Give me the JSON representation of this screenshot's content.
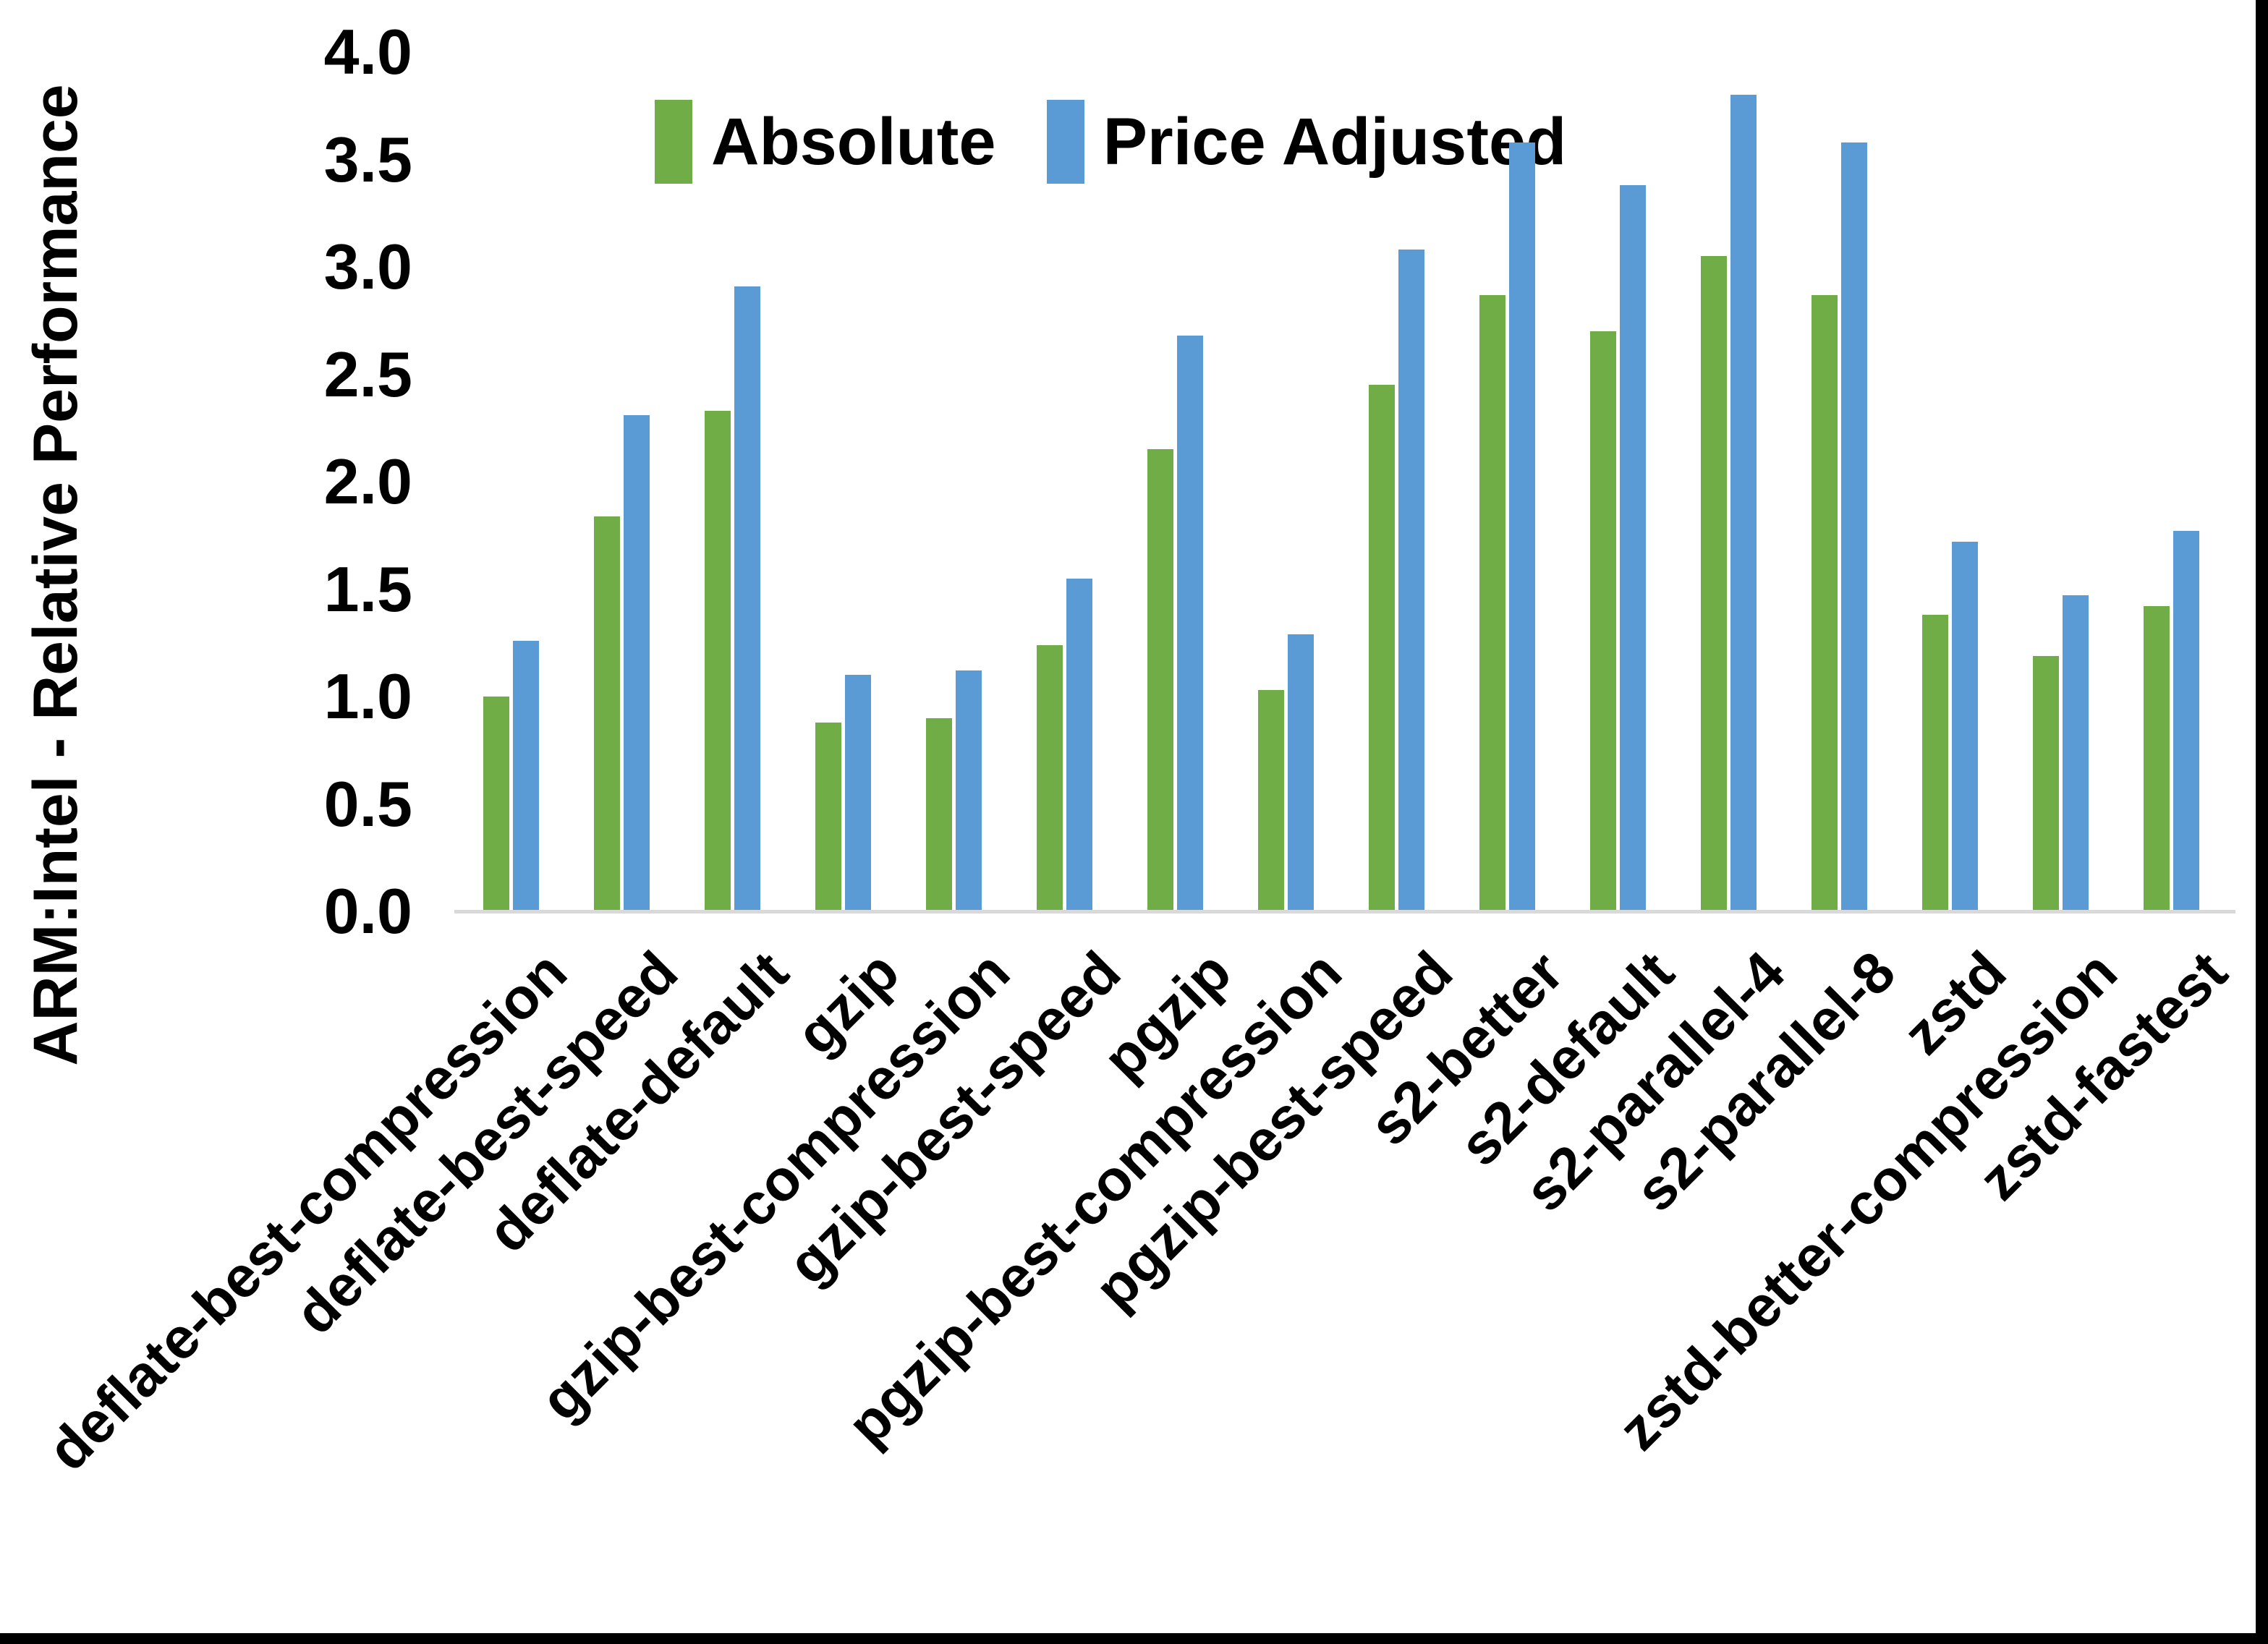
{
  "chart_data": {
    "type": "bar",
    "title": "",
    "ylabel": "ARM:Intel - Relative Performance",
    "xlabel": "",
    "ylim": [
      0.0,
      4.0
    ],
    "ytick_step": 0.5,
    "ytick_labels": [
      "0.0",
      "0.5",
      "1.0",
      "1.5",
      "2.0",
      "2.5",
      "3.0",
      "3.5",
      "4.0"
    ],
    "grid": false,
    "legend_position": "top-center",
    "categories": [
      "deflate-best-compression",
      "deflate-best-speed",
      "deflate-default",
      "gzip",
      "gzip-best-compression",
      "gzip-best-speed",
      "pgzip",
      "pgzip-best-compression",
      "pgzip-best-speed",
      "s2-better",
      "s2-default",
      "s2-parallel-4",
      "s2-parallel-8",
      "zstd",
      "zstd-better-compression",
      "zstd-fastest"
    ],
    "series": [
      {
        "name": "Absolute",
        "color": "#70AD47",
        "values": [
          1.0,
          1.84,
          2.33,
          0.88,
          0.9,
          1.24,
          2.15,
          1.03,
          2.45,
          2.87,
          2.7,
          3.05,
          2.87,
          1.38,
          1.19,
          1.42
        ]
      },
      {
        "name": "Price Adjusted",
        "color": "#5B9BD5",
        "values": [
          1.26,
          2.31,
          2.91,
          1.1,
          1.12,
          1.55,
          2.68,
          1.29,
          3.08,
          3.58,
          3.38,
          3.8,
          3.58,
          1.72,
          1.47,
          1.77
        ]
      }
    ],
    "axis_line_color": "#D9D9D9",
    "text_color": "#000000",
    "background_color": "#FFFFFF",
    "page_edge_color": "#000000"
  }
}
